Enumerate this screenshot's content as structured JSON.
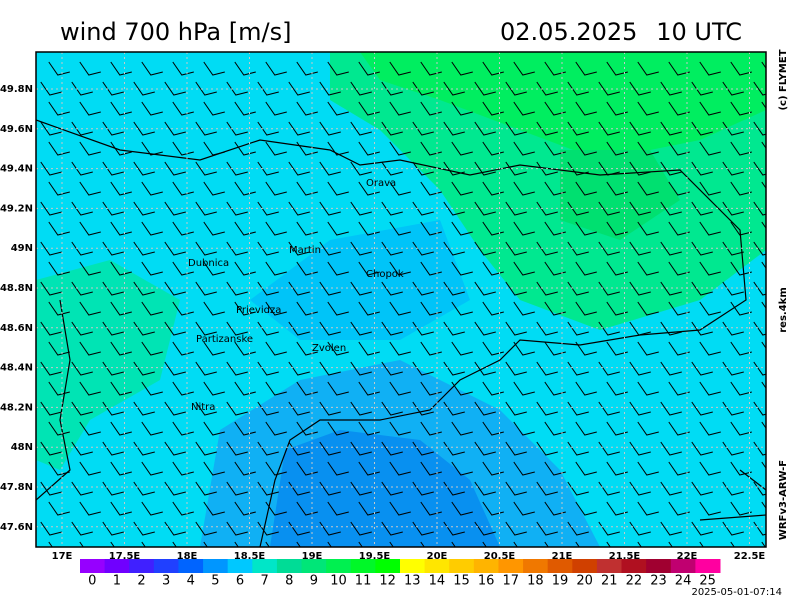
{
  "header": {
    "title": "wind 700 hPa [m/s]",
    "date": "02.05.2025",
    "time": "10 UTC"
  },
  "side_labels": [
    "(c) FLYMET",
    "res.4km",
    "WRFv3-ARW-F"
  ],
  "lon_ticks": [
    "17E",
    "17.5E",
    "18E",
    "18.5E",
    "19E",
    "19.5E",
    "20E",
    "20.5E",
    "21E",
    "21.5E",
    "22E",
    "22.5E"
  ],
  "lat_ticks": [
    "49.8N",
    "49.6N",
    "49.4N",
    "49.2N",
    "49N",
    "48.8N",
    "48.6N",
    "48.4N",
    "48.2N",
    "48N",
    "47.8N",
    "47.6N"
  ],
  "cities": [
    "Orava",
    "Martin",
    "Dubnica",
    "Chopok",
    "Prievidza",
    "Partizanske",
    "Zvolen",
    "Nitra"
  ],
  "colorbar": {
    "values": [
      0,
      1,
      2,
      3,
      4,
      5,
      6,
      7,
      8,
      9,
      10,
      11,
      12,
      13,
      14,
      15,
      16,
      17,
      18,
      19,
      20,
      21,
      22,
      23,
      24,
      25
    ],
    "colors": [
      "#9600ff",
      "#7000ff",
      "#4020ff",
      "#2040ff",
      "#0064ff",
      "#0096ff",
      "#00c8ff",
      "#00e6c8",
      "#00dc96",
      "#00e678",
      "#00f050",
      "#00f828",
      "#00ff00",
      "#ffff00",
      "#ffe600",
      "#ffcc00",
      "#ffb400",
      "#ff9600",
      "#f07800",
      "#e05a00",
      "#d04000",
      "#c03030",
      "#b01020",
      "#a00030",
      "#c00070",
      "#ff00a0"
    ]
  },
  "timestamp": "2025-05-01-07:14"
}
